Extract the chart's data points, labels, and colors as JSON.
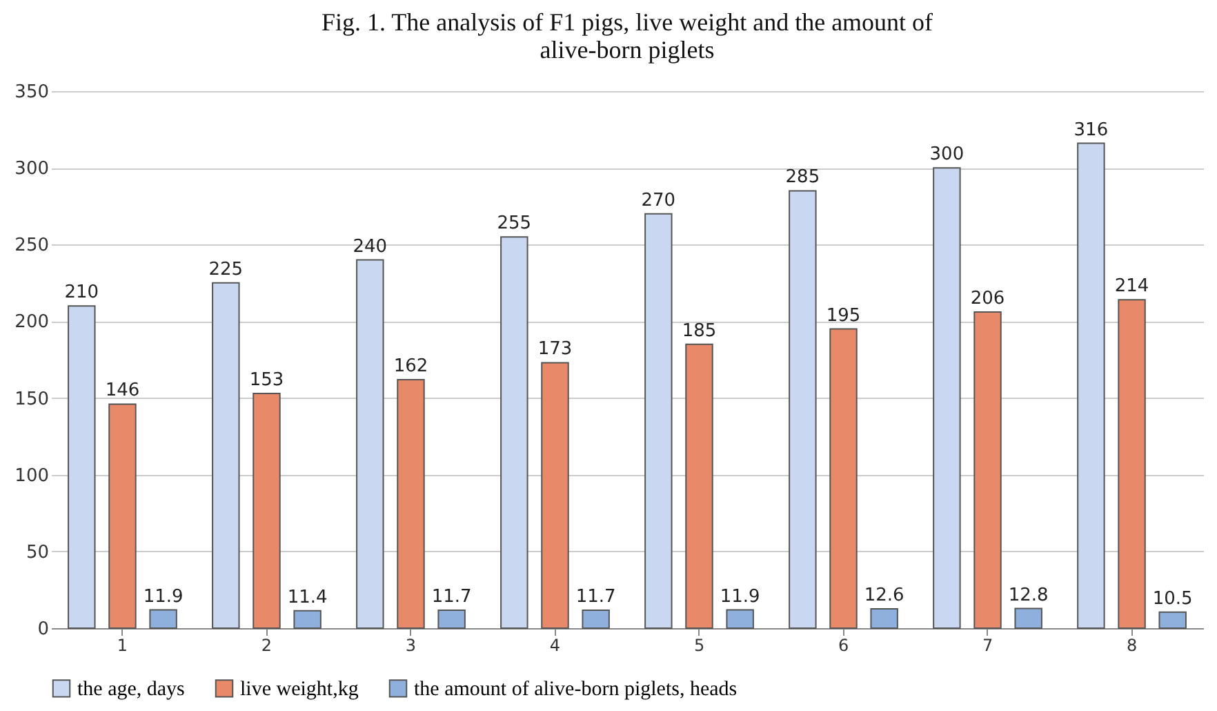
{
  "chart_data": {
    "type": "bar",
    "title": "Fig. 1. The analysis of F1 pigs, live weight and the amount of alive-born piglets",
    "categories": [
      "1",
      "2",
      "3",
      "4",
      "5",
      "6",
      "7",
      "8"
    ],
    "series": [
      {
        "name": "the age, days",
        "color": "#c9d8f0",
        "values": [
          210,
          225,
          240,
          255,
          270,
          285,
          300,
          316
        ]
      },
      {
        "name": "live weight,kg",
        "color": "#e88a6a",
        "values": [
          146,
          153,
          162,
          173,
          185,
          195,
          206,
          214
        ]
      },
      {
        "name": "the amount of alive-born piglets, heads",
        "color": "#8fb0dc",
        "values": [
          11.9,
          11.4,
          11.7,
          11.7,
          11.9,
          12.6,
          12.8,
          10.5
        ]
      }
    ],
    "ylim": [
      0,
      350
    ],
    "yticks": [
      0,
      50,
      100,
      150,
      200,
      250,
      300,
      350
    ],
    "grid": "y",
    "legend": "bottom",
    "data_labels": true
  }
}
